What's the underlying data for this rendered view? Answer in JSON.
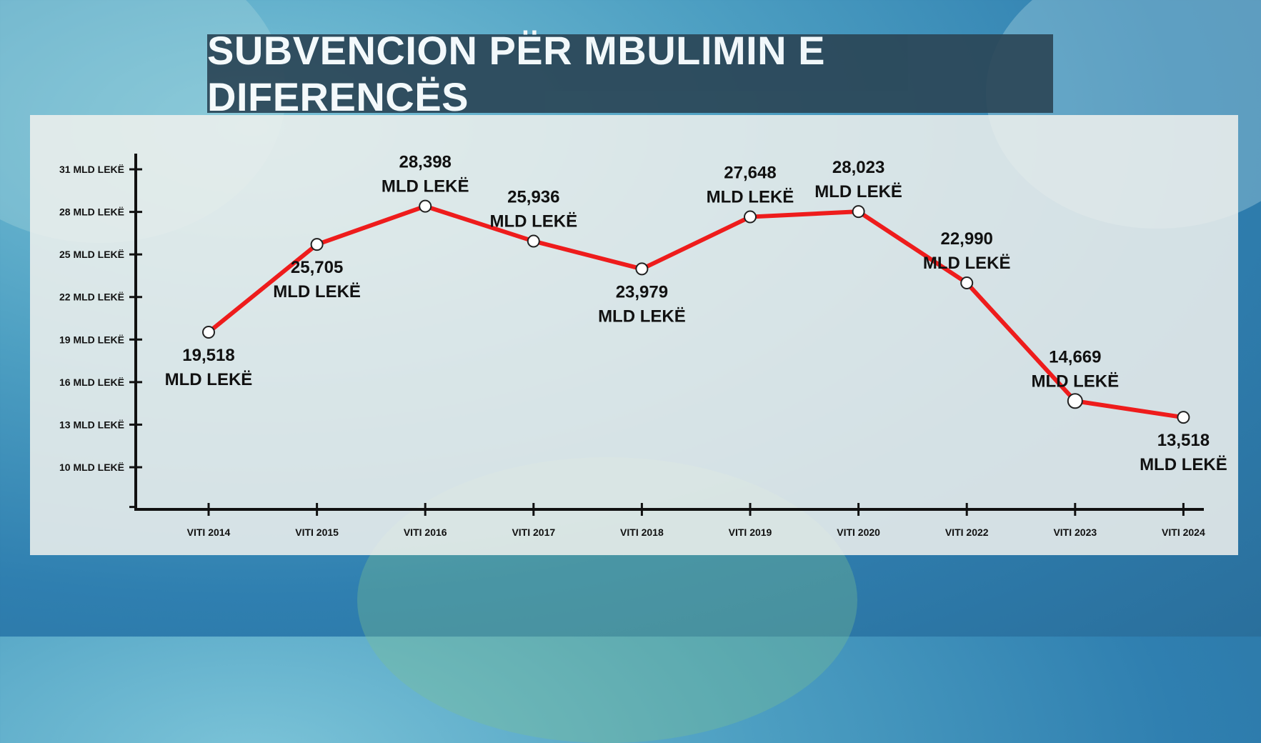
{
  "title": "SUBVENCION PËR MBULIMIN E DIFERENCËS",
  "chart_data": {
    "type": "line",
    "title": "SUBVENCION PËR MBULIMIN E DIFERENCËS",
    "xlabel": "",
    "ylabel": "",
    "categories": [
      "VITI 2014",
      "VITI 2015",
      "VITI 2016",
      "VITI 2017",
      "VITI 2018",
      "VITI 2019",
      "VITI 2020",
      "VITI 2022",
      "VITI 2023",
      "VITI 2024"
    ],
    "values": [
      19.518,
      25.705,
      28.398,
      25.936,
      23.979,
      27.648,
      28.023,
      22.99,
      14.669,
      13.518
    ],
    "data_labels": [
      [
        "19,518",
        "MLD LEKË"
      ],
      [
        "25,705",
        "MLD LEKË"
      ],
      [
        "28,398",
        "MLD LEKË"
      ],
      [
        "25,936",
        "MLD LEKË"
      ],
      [
        "23,979",
        "MLD LEKË"
      ],
      [
        "27,648",
        "MLD LEKË"
      ],
      [
        "28,023",
        "MLD LEKË"
      ],
      [
        "22,990",
        "MLD LEKË"
      ],
      [
        "14,669",
        "MLD LEKË"
      ],
      [
        "13,518",
        "MLD LEKË"
      ]
    ],
    "label_placement": [
      "below",
      "below",
      "above",
      "above",
      "below",
      "above",
      "above",
      "above",
      "above",
      "below"
    ],
    "y_ticks": [
      10,
      13,
      16,
      19,
      22,
      25,
      28,
      31
    ],
    "y_tick_labels": [
      "10 MLD LEKË",
      "13 MLD LEKË",
      "16 MLD LEKË",
      "19 MLD LEKË",
      "22 MLD LEKË",
      "25 MLD LEKË",
      "28 MLD LEKË",
      "31 MLD LEKË"
    ],
    "ylim": [
      7,
      32
    ],
    "grid": false,
    "legend": "none",
    "line_color": "#ee1c1c",
    "marker_fill": "#ffffff"
  }
}
